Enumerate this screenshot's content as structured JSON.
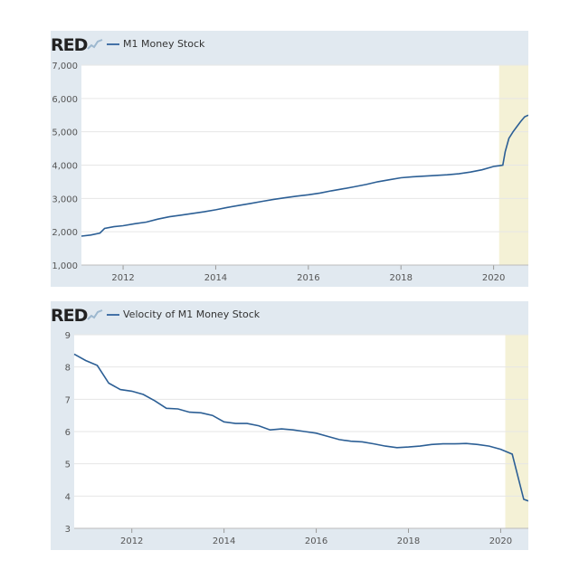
{
  "colors": {
    "line": "#2c5f95",
    "recession": "#f4f1d6",
    "panel": "#e1e9f0",
    "grid": "#e6e6e6"
  },
  "logo_text": "RED",
  "chart_data": [
    {
      "type": "line",
      "title": "",
      "legend": "M1 Money Stock",
      "ylim": [
        1000,
        7000
      ],
      "yticks": [
        1000,
        2000,
        3000,
        4000,
        5000,
        6000,
        7000
      ],
      "ytick_labels": [
        "1,000",
        "2,000",
        "3,000",
        "4,000",
        "5,000",
        "6,000",
        "7,000"
      ],
      "xlim": [
        2011.1,
        2020.75
      ],
      "xticks": [
        2012,
        2014,
        2016,
        2018,
        2020
      ],
      "xtick_labels": [
        "2012",
        "2014",
        "2016",
        "2018",
        "2020"
      ],
      "recession": [
        2020.12,
        2020.75
      ],
      "series": [
        {
          "x": [
            2011.1,
            2011.3,
            2011.5,
            2011.6,
            2011.8,
            2012.0,
            2012.25,
            2012.5,
            2012.75,
            2013.0,
            2013.25,
            2013.5,
            2013.75,
            2014.0,
            2014.25,
            2014.5,
            2014.75,
            2015.0,
            2015.25,
            2015.5,
            2015.75,
            2016.0,
            2016.25,
            2016.5,
            2016.75,
            2017.0,
            2017.25,
            2017.5,
            2017.75,
            2018.0,
            2018.25,
            2018.5,
            2018.75,
            2019.0,
            2019.25,
            2019.5,
            2019.75,
            2020.0,
            2020.12,
            2020.2,
            2020.25,
            2020.33,
            2020.42,
            2020.5,
            2020.58,
            2020.67,
            2020.75
          ],
          "y": [
            1870,
            1900,
            1960,
            2100,
            2150,
            2180,
            2240,
            2290,
            2380,
            2450,
            2500,
            2550,
            2600,
            2660,
            2730,
            2790,
            2850,
            2910,
            2970,
            3020,
            3070,
            3110,
            3160,
            3230,
            3290,
            3350,
            3420,
            3500,
            3560,
            3620,
            3650,
            3670,
            3690,
            3710,
            3740,
            3790,
            3860,
            3960,
            3980,
            4000,
            4400,
            4800,
            5000,
            5150,
            5300,
            5450,
            5500
          ]
        }
      ]
    },
    {
      "type": "line",
      "title": "",
      "legend": "Velocity of M1 Money Stock",
      "ylim": [
        3,
        9
      ],
      "yticks": [
        3,
        4,
        5,
        6,
        7,
        8,
        9
      ],
      "ytick_labels": [
        "3",
        "4",
        "5",
        "6",
        "7",
        "8",
        "9"
      ],
      "xlim": [
        2010.75,
        2020.6
      ],
      "xticks": [
        2012,
        2014,
        2016,
        2018,
        2020
      ],
      "xtick_labels": [
        "2012",
        "2014",
        "2016",
        "2018",
        "2020"
      ],
      "recession": [
        2020.1,
        2020.6
      ],
      "series": [
        {
          "x": [
            2010.75,
            2011.0,
            2011.25,
            2011.5,
            2011.75,
            2012.0,
            2012.25,
            2012.5,
            2012.75,
            2013.0,
            2013.25,
            2013.5,
            2013.75,
            2014.0,
            2014.25,
            2014.5,
            2014.75,
            2015.0,
            2015.25,
            2015.5,
            2015.75,
            2016.0,
            2016.25,
            2016.5,
            2016.75,
            2017.0,
            2017.25,
            2017.5,
            2017.75,
            2018.0,
            2018.25,
            2018.5,
            2018.75,
            2019.0,
            2019.25,
            2019.5,
            2019.75,
            2020.0,
            2020.25,
            2020.5,
            2020.6
          ],
          "y": [
            8.4,
            8.2,
            8.05,
            7.5,
            7.3,
            7.25,
            7.15,
            6.95,
            6.72,
            6.7,
            6.6,
            6.58,
            6.5,
            6.3,
            6.25,
            6.25,
            6.18,
            6.05,
            6.08,
            6.05,
            6.0,
            5.95,
            5.85,
            5.75,
            5.7,
            5.68,
            5.62,
            5.55,
            5.5,
            5.52,
            5.55,
            5.6,
            5.62,
            5.62,
            5.63,
            5.6,
            5.55,
            5.45,
            5.3,
            3.9,
            3.85
          ]
        }
      ]
    }
  ]
}
